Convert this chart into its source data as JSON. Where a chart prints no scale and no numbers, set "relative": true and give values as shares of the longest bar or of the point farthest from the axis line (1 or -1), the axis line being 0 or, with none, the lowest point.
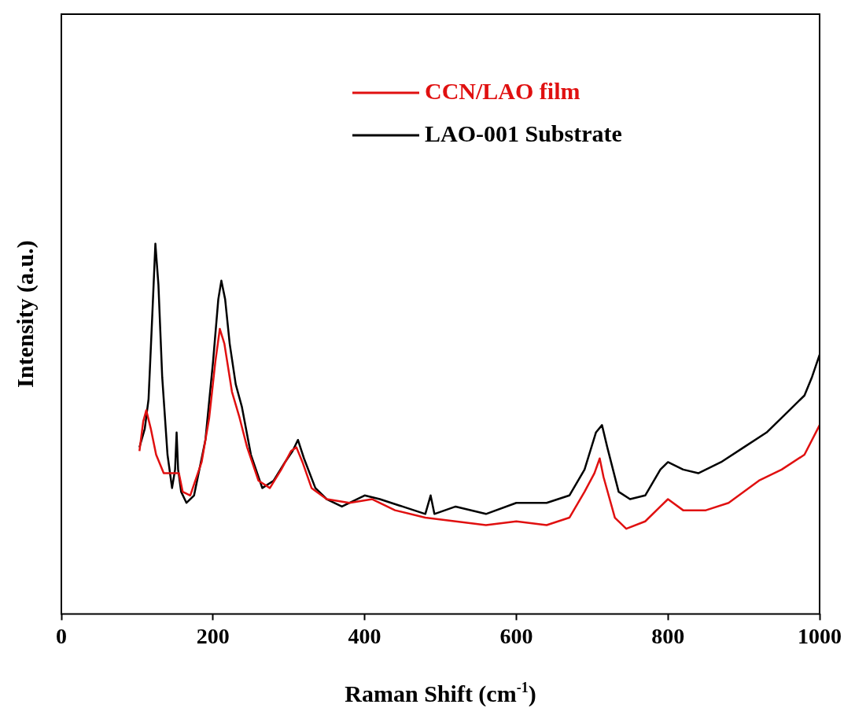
{
  "chart_data": {
    "type": "line",
    "relative": true,
    "xlabel": "Raman Shift (cm$^{-1}$)",
    "ylabel": "Intensity (a.u.)",
    "xlim": [
      0,
      1000
    ],
    "xticks": [
      0,
      200,
      400,
      600,
      800,
      1000
    ],
    "grid": false,
    "legend": "top right",
    "marker": "none",
    "line_style": "solid",
    "series": [
      {
        "name": "CCN/LAO film",
        "color": "#e01010",
        "x": [
          103,
          108,
          112,
          118,
          125,
          135,
          145,
          150,
          155,
          160,
          170,
          185,
          195,
          203,
          209,
          215,
          225,
          235,
          245,
          260,
          275,
          290,
          303,
          310,
          318,
          330,
          350,
          380,
          410,
          440,
          480,
          520,
          560,
          600,
          640,
          670,
          690,
          703,
          710,
          715,
          730,
          745,
          770,
          790,
          800,
          820,
          850,
          880,
          920,
          950,
          980,
          1000
        ],
        "values": [
          0.44,
          0.52,
          0.55,
          0.5,
          0.43,
          0.38,
          0.38,
          0.38,
          0.38,
          0.33,
          0.32,
          0.41,
          0.53,
          0.68,
          0.77,
          0.73,
          0.6,
          0.53,
          0.45,
          0.36,
          0.34,
          0.39,
          0.44,
          0.45,
          0.41,
          0.34,
          0.31,
          0.3,
          0.31,
          0.28,
          0.26,
          0.25,
          0.24,
          0.25,
          0.24,
          0.26,
          0.33,
          0.38,
          0.42,
          0.37,
          0.26,
          0.23,
          0.25,
          0.29,
          0.31,
          0.28,
          0.28,
          0.3,
          0.36,
          0.39,
          0.43,
          0.51
        ]
      },
      {
        "name": "LAO-001 Substrate",
        "color": "#000000",
        "x": [
          103,
          110,
          115,
          120,
          124,
          128,
          133,
          140,
          146,
          150,
          152,
          154,
          158,
          165,
          175,
          190,
          200,
          207,
          211,
          216,
          222,
          230,
          238,
          250,
          265,
          280,
          295,
          305,
          312,
          320,
          335,
          350,
          370,
          400,
          420,
          450,
          480,
          487,
          492,
          520,
          560,
          600,
          640,
          670,
          690,
          705,
          713,
          720,
          735,
          750,
          770,
          790,
          800,
          820,
          840,
          870,
          900,
          930,
          960,
          980,
          990,
          1000
        ],
        "values": [
          0.45,
          0.5,
          0.58,
          0.81,
          1.0,
          0.89,
          0.64,
          0.43,
          0.34,
          0.39,
          0.49,
          0.39,
          0.33,
          0.3,
          0.32,
          0.47,
          0.68,
          0.85,
          0.9,
          0.85,
          0.73,
          0.62,
          0.56,
          0.43,
          0.34,
          0.36,
          0.41,
          0.44,
          0.47,
          0.42,
          0.34,
          0.31,
          0.29,
          0.32,
          0.31,
          0.29,
          0.27,
          0.32,
          0.27,
          0.29,
          0.27,
          0.3,
          0.3,
          0.32,
          0.39,
          0.49,
          0.51,
          0.45,
          0.33,
          0.31,
          0.32,
          0.39,
          0.41,
          0.39,
          0.38,
          0.41,
          0.45,
          0.49,
          0.55,
          0.59,
          0.64,
          0.7
        ]
      }
    ]
  }
}
